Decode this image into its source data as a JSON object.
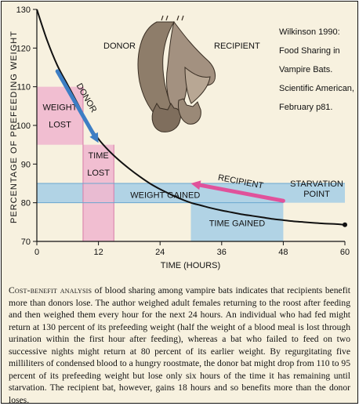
{
  "chart_data": {
    "type": "line",
    "xlabel": "TIME (HOURS)",
    "ylabel": "PERCENTAGE OF PREFEEDING WEIGHT",
    "xlim": [
      0,
      60
    ],
    "ylim": [
      70,
      130
    ],
    "x_ticks": [
      0,
      12,
      24,
      36,
      48,
      60
    ],
    "y_ticks": [
      70,
      80,
      90,
      100,
      110,
      120,
      130
    ],
    "grid": false,
    "series": [
      {
        "x": [
          0,
          2,
          4,
          6,
          8,
          10,
          12,
          14,
          16,
          18,
          20,
          22,
          24,
          26,
          28,
          30,
          32,
          34,
          36,
          38,
          40,
          42,
          44,
          46,
          48,
          50,
          52,
          54,
          56,
          58,
          60
        ],
        "y": [
          130,
          122,
          115.5,
          110.5,
          105.5,
          100.5,
          96.5,
          93.5,
          91,
          88.8,
          86.8,
          85,
          83.5,
          82.2,
          81,
          80,
          79.3,
          78.6,
          78,
          77.5,
          77,
          76.6,
          76.2,
          75.8,
          75.5,
          75.2,
          75,
          74.8,
          74.6,
          74.5,
          74.3
        ]
      }
    ],
    "end_point": {
      "x": 60,
      "y": 74.3
    },
    "shaded_regions": [
      {
        "label": "WEIGHT LOST",
        "x": [
          0,
          9
        ],
        "y": [
          95,
          110
        ],
        "color": "#f0b8cf"
      },
      {
        "label": "TIME LOST",
        "x": [
          9,
          15
        ],
        "y": [
          70,
          95
        ],
        "color": "#f0b8cf"
      },
      {
        "label": "WEIGHT GAINED",
        "x": [
          0,
          60
        ],
        "y": [
          80,
          85
        ],
        "color": "#a9cfe6"
      },
      {
        "label": "TIME GAINED",
        "x": [
          30,
          48
        ],
        "y": [
          70,
          80
        ],
        "color": "#a9cfe6"
      }
    ],
    "arrows": [
      {
        "label": "DONOR",
        "from": [
          4,
          114
        ],
        "to": [
          12,
          95.5
        ],
        "color": "#3d7ec4"
      },
      {
        "label": "RECIPIENT",
        "from": [
          48,
          80.5
        ],
        "to": [
          30,
          85
        ],
        "color": "#e0529b"
      }
    ],
    "annotations": {
      "donor_label": "DONOR",
      "recipient_label": "RECIPIENT",
      "starvation": [
        "STARVATION",
        "POINT"
      ]
    },
    "reference_lines": [
      "Wilkinson 1990:",
      "Food Sharing in",
      "Vampire Bats.",
      "Scientific American,",
      "February p81."
    ]
  },
  "caption": {
    "lead": "Cost-benefit analysis",
    "text": " of blood sharing among vampire bats indicates that recipients benefit more than donors lose. The author weighed adult females returning to the roost after feeding and then weighed them every hour for the next 24 hours. An individual who had fed might return at 130 percent of its prefeeding weight (half the weight of a blood meal is lost through urination within the first hour after feeding), whereas a bat who failed to feed on two successive nights might return at 80 percent of its earlier weight. By regurgitating five milliliters of condensed blood to a hungry roostmate, the donor bat might drop from 110 to 95 percent of its prefeeding weight but lose only six hours of the time it has remaining until starvation. The recipient bat, however, gains 18 hours and so benefits more than the donor loses."
  },
  "colors": {
    "pink": "#f0b8cf",
    "blue": "#a9cfe6",
    "donor_arrow": "#3d7ec4",
    "recipient_arrow": "#e0529b",
    "background": "#f7f1df"
  }
}
